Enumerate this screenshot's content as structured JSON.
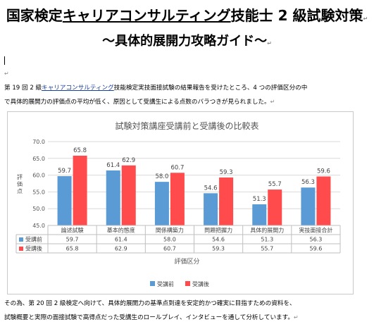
{
  "document": {
    "title_prefix": "国家検定",
    "title_link": "キャリアコンサルティング",
    "title_suffix": "技能士 2 級試験対策",
    "subtitle": "～具体的展開力攻略ガイド～",
    "intro_line1_a": "第 19 回 2 級",
    "intro_line1_link": "キャリアコンサルティング",
    "intro_line1_b": "技能検定実技面接試験の結果報告を受けたところ、4 つの評価区分の中",
    "intro_line2": "で具体的展開力の評価点の平均が低く、原因として受講生による点数のバラつきが見られました。",
    "outro_line1": "その為、第 20 回 2 級検定へ向けて、具体的展開力の基準点到達を安定的かつ確実に目指すための資料を、",
    "outro_line2": "試験概要と実際の面接試験で高得点だった受講生のロールプレイ、インタビューを通して分析しています。",
    "paragraph_mark": "↵"
  },
  "chart_data": {
    "type": "bar",
    "title": "試験対策講座受講前と受講後の比較表",
    "xlabel": "評価区分",
    "ylabel": "評価点",
    "ylim": [
      45.0,
      70.0
    ],
    "yticks": [
      "45.0",
      "50.0",
      "55.0",
      "60.0",
      "65.0",
      "70.0"
    ],
    "grid": true,
    "legend_position": "bottom",
    "categories": [
      "論述試験",
      "基本的態度",
      "関係構築力",
      "問題把握力",
      "具体的展開力",
      "実技面接合計"
    ],
    "series": [
      {
        "name": "受講前",
        "color": "#5b9bd5",
        "values": [
          59.7,
          61.4,
          58.0,
          54.6,
          51.3,
          56.3
        ],
        "labels": [
          "59.7",
          "61.4",
          "58.0",
          "54.6",
          "51.3",
          "56.3"
        ]
      },
      {
        "name": "受講後",
        "color": "#ff4b4b",
        "values": [
          65.8,
          62.9,
          60.7,
          59.3,
          55.7,
          59.6
        ],
        "labels": [
          "65.8",
          "62.9",
          "60.7",
          "59.3",
          "55.7",
          "59.6"
        ]
      }
    ]
  }
}
